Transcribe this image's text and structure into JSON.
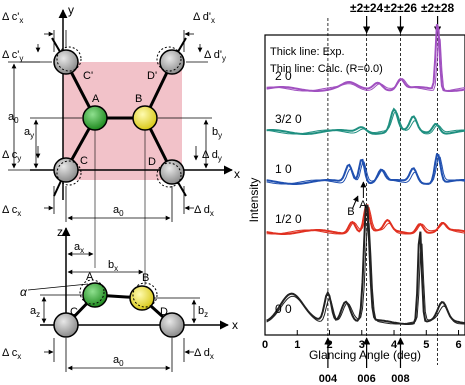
{
  "left_panel": {
    "top_view": {
      "atoms": {
        "A": "A",
        "B": "B",
        "C": "C",
        "D": "D",
        "C_prime": "C'",
        "D_prime": "D'"
      },
      "axis_x": "x",
      "axis_y": "y",
      "dims": {
        "a0_left": "a",
        "a0_left_sub": "0",
        "ay": "a",
        "ay_sub": "y",
        "by": "b",
        "by_sub": "y",
        "a0_bottom": "a",
        "a0_bottom_sub": "0",
        "delta_cpx": "Δ c'",
        "delta_cpx_sub": "x",
        "delta_cpy": "Δ c'",
        "delta_cpy_sub": "y",
        "delta_cy": "Δ c",
        "delta_cy_sub": "y",
        "delta_cx": "Δ c",
        "delta_cx_sub": "x",
        "delta_dpx": "Δ d'",
        "delta_dpx_sub": "x",
        "delta_dpy": "Δ d'",
        "delta_dpy_sub": "y",
        "delta_dy": "Δ d",
        "delta_dy_sub": "y",
        "delta_dx": "Δ d",
        "delta_dx_sub": "x"
      },
      "colors": {
        "square": "#f2c6cc",
        "atom_A": "#3aa83a",
        "atom_B": "#f0e040",
        "atom_gray": "#a8a8a8"
      }
    },
    "side_view": {
      "atoms": {
        "A": "A",
        "B": "B",
        "C": "C",
        "D": "D"
      },
      "axis_x": "x",
      "axis_z": "z",
      "alpha": "α",
      "dims": {
        "ax": "a",
        "ax_sub": "x",
        "bx": "b",
        "bx_sub": "x",
        "az": "a",
        "az_sub": "z",
        "bz": "b",
        "bz_sub": "z",
        "a0": "a",
        "a0_sub": "0",
        "delta_cx": "Δ c",
        "delta_cx_sub": "x",
        "delta_dx": "Δ d",
        "delta_dx_sub": "x"
      }
    }
  },
  "chart_data": {
    "type": "line",
    "legend_lines": [
      "Thick line: Exp.",
      "Thin line: Calc. (R=0.0)"
    ],
    "xlabel": "Glancing Angle (deg)",
    "ylabel": "Intensity",
    "xlim": [
      0,
      6.2
    ],
    "xticks": [
      0,
      1,
      2,
      3,
      4,
      5,
      6
    ],
    "top_labels": [
      "±2±24",
      "±2±26",
      "±2±28"
    ],
    "bottom_labels": [
      "004",
      "006",
      "008"
    ],
    "dashed_angles": [
      1.95,
      3.15,
      4.2,
      5.35
    ],
    "dashed_labels": [],
    "rows": [
      {
        "name": "2 0",
        "color": "#a050c0",
        "offset": 0
      },
      {
        "name": "3/2 0",
        "color": "#1f8f80",
        "offset": 1
      },
      {
        "name": "1 0",
        "color": "#2050b0",
        "offset": 2
      },
      {
        "name": "1/2 0",
        "color": "#e03020",
        "offset": 3
      },
      {
        "name": "0 0",
        "color": "#222222",
        "offset": 4
      }
    ],
    "annotations": {
      "B": "B",
      "A": "A"
    },
    "colors": {
      "2 0": "#a050c0",
      "3/2 0": "#1f8f80",
      "1 0": "#2050b0",
      "1/2 0": "#e03020",
      "0 0": "#222222"
    }
  }
}
